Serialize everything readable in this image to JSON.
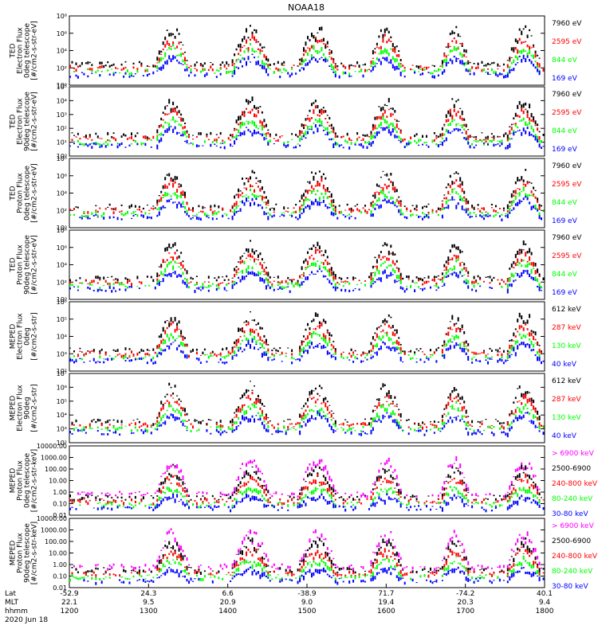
{
  "title": "NOAA18",
  "colors": {
    "black": "#000000",
    "red": "#ff0000",
    "green": "#00ff00",
    "blue": "#0000ff",
    "magenta": "#ff00ff"
  },
  "chart_data": [
    {
      "type": "scatter",
      "ylabel": [
        "TED",
        "Electron Flux",
        "0deg telescope",
        "[#/cm2-s-str-eV]"
      ],
      "y_scale": "log",
      "ylim": [
        1,
        100000000
      ],
      "y_ticks": [
        "10⁰",
        "10²",
        "10⁴",
        "10⁶",
        "10⁸"
      ],
      "legend": [
        {
          "label": "7960 eV",
          "color": "#000000"
        },
        {
          "label": "2595 eV",
          "color": "#ff0000"
        },
        {
          "label": "844 eV",
          "color": "#00ff00"
        },
        {
          "label": "169 eV",
          "color": "#0000ff"
        }
      ]
    },
    {
      "type": "scatter",
      "ylabel": [
        "TED",
        "Electron Flux",
        "90deg telescope",
        "[#/cm2-s-str-eV]"
      ],
      "y_scale": "log",
      "ylim": [
        1,
        100000
      ],
      "y_ticks": [
        "10⁰",
        "10¹",
        "10²",
        "10³",
        "10⁴",
        "10⁵"
      ],
      "legend": [
        {
          "label": "7960 eV",
          "color": "#000000"
        },
        {
          "label": "2595 eV",
          "color": "#ff0000"
        },
        {
          "label": "844 eV",
          "color": "#00ff00"
        },
        {
          "label": "169 eV",
          "color": "#0000ff"
        }
      ]
    },
    {
      "type": "scatter",
      "ylabel": [
        "TED",
        "Proton Flux",
        "0deg telescope",
        "[#/cm2-s-str-eV]"
      ],
      "y_scale": "log",
      "ylim": [
        1,
        100000000
      ],
      "y_ticks": [
        "10⁰",
        "10²",
        "10⁴",
        "10⁶",
        "10⁸"
      ],
      "legend": [
        {
          "label": "7960 eV",
          "color": "#000000"
        },
        {
          "label": "2595 eV",
          "color": "#ff0000"
        },
        {
          "label": "844 eV",
          "color": "#00ff00"
        },
        {
          "label": "169 eV",
          "color": "#0000ff"
        }
      ]
    },
    {
      "type": "scatter",
      "ylabel": [
        "TED",
        "Proton Flux",
        "90deg telescope",
        "[#/cm2-s-str-eV]"
      ],
      "y_scale": "log",
      "ylim": [
        1,
        100000000
      ],
      "y_ticks": [
        "10⁰",
        "10²",
        "10⁴",
        "10⁶",
        "10⁸"
      ],
      "legend": [
        {
          "label": "7960 eV",
          "color": "#000000"
        },
        {
          "label": "2595 eV",
          "color": "#ff0000"
        },
        {
          "label": "844 eV",
          "color": "#00ff00"
        },
        {
          "label": "169 eV",
          "color": "#0000ff"
        }
      ]
    },
    {
      "type": "scatter",
      "ylabel": [
        "MEPED",
        "Electron Flux",
        "0deg",
        "[#/cm2-s-str]"
      ],
      "y_scale": "log",
      "ylim": [
        100,
        1000000
      ],
      "y_ticks": [
        "10²",
        "10³",
        "10⁴",
        "10⁵",
        "10⁶"
      ],
      "legend": [
        {
          "label": "612 keV",
          "color": "#000000"
        },
        {
          "label": "287 keV",
          "color": "#ff0000"
        },
        {
          "label": "130 keV",
          "color": "#00ff00"
        },
        {
          "label": "40 keV",
          "color": "#0000ff"
        }
      ]
    },
    {
      "type": "scatter",
      "ylabel": [
        "MEPED",
        "Electron Flux",
        "90deg",
        "[#/cm2-s-str]"
      ],
      "y_scale": "log",
      "ylim": [
        100,
        10000000
      ],
      "y_ticks": [
        "10²",
        "10³",
        "10⁴",
        "10⁵",
        "10⁶",
        "10⁷"
      ],
      "legend": [
        {
          "label": "612 keV",
          "color": "#000000"
        },
        {
          "label": "287 keV",
          "color": "#ff0000"
        },
        {
          "label": "130 keV",
          "color": "#00ff00"
        },
        {
          "label": "40 keV",
          "color": "#0000ff"
        }
      ]
    },
    {
      "type": "scatter",
      "ylabel": [
        "MEPED",
        "Proton Flux",
        "0deg telescope",
        "[#/cm2-s-str-keV]"
      ],
      "y_scale": "log",
      "ylim": [
        0.01,
        10000
      ],
      "y_ticks": [
        "0.01",
        "0.10",
        "1.00",
        "10.00",
        "100.00",
        "1000.00",
        "10000.00"
      ],
      "legend": [
        {
          "label": "> 6900 keV",
          "color": "#ff00ff"
        },
        {
          "label": "2500-6900",
          "color": "#000000"
        },
        {
          "label": "240-800 keV",
          "color": "#ff0000"
        },
        {
          "label": "80-240 keV",
          "color": "#00ff00"
        },
        {
          "label": "30-80 keV",
          "color": "#0000ff"
        }
      ]
    },
    {
      "type": "scatter",
      "ylabel": [
        "MEPED",
        "Proton Flux",
        "90deg telescope",
        "[#/cm2-s-str-keV]"
      ],
      "y_scale": "log",
      "ylim": [
        0.01,
        10000
      ],
      "y_ticks": [
        "0.01",
        "0.10",
        "1.00",
        "10.00",
        "100.00",
        "1000.00",
        "10000.00"
      ],
      "legend": [
        {
          "label": "> 6900 keV",
          "color": "#ff00ff"
        },
        {
          "label": "2500-6900",
          "color": "#000000"
        },
        {
          "label": "240-800 keV",
          "color": "#ff0000"
        },
        {
          "label": "80-240 keV",
          "color": "#00ff00"
        },
        {
          "label": "30-80 keV",
          "color": "#0000ff"
        }
      ]
    }
  ],
  "x_axis": {
    "rows": [
      {
        "label": "Lat",
        "values": [
          "-52.9",
          "24.3",
          "6.6",
          "-38.9",
          "71.7",
          "-74.2",
          "40.1"
        ]
      },
      {
        "label": "MLT",
        "values": [
          "22.1",
          "9.5",
          "20.9",
          "9.0",
          "19.4",
          "20.3",
          "9.4"
        ]
      },
      {
        "label": "hhmm",
        "values": [
          "1200",
          "1300",
          "1400",
          "1500",
          "1600",
          "1700",
          "1800"
        ]
      }
    ],
    "date": "2020 Jun 18"
  }
}
